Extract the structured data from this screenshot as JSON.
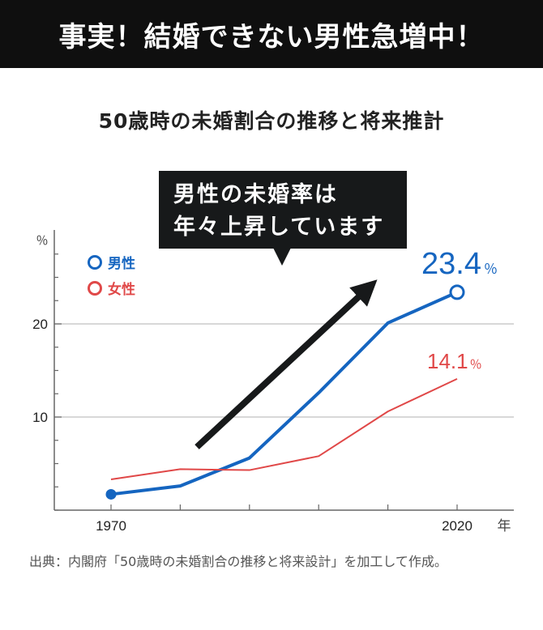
{
  "header": {
    "title": "事実！結婚できない男性急増中！"
  },
  "callout": {
    "line1": "男性の未婚率は",
    "line2": "年々上昇しています"
  },
  "source": {
    "text": "出典：内閣府「50歳時の未婚割合の推移と将来設計」を加工して作成。"
  },
  "colors": {
    "male": "#1565c0",
    "female": "#e04848",
    "arrow": "#17191a",
    "axis": "#666666",
    "grid": "#cccccc"
  },
  "chart_data": {
    "type": "line",
    "title": "50歳時の未婚割合の推移と将来推計",
    "ylabel": "％",
    "xlabel": "年",
    "x": [
      1970,
      1980,
      1990,
      2000,
      2010,
      2020
    ],
    "xtick_labels": [
      "1970",
      "",
      "",
      "",
      "",
      "2020"
    ],
    "yticks": [
      10,
      20
    ],
    "ylim": [
      0,
      29
    ],
    "grid": true,
    "legend_position": "top-left",
    "series": [
      {
        "name": "男性",
        "key": "male",
        "values": [
          1.7,
          2.6,
          5.6,
          12.6,
          20.1,
          23.4
        ],
        "end_label": "23.4",
        "end_unit": "％"
      },
      {
        "name": "女性",
        "key": "female",
        "values": [
          3.3,
          4.4,
          4.3,
          5.8,
          10.6,
          14.1
        ],
        "end_label": "14.1",
        "end_unit": "％"
      }
    ]
  }
}
